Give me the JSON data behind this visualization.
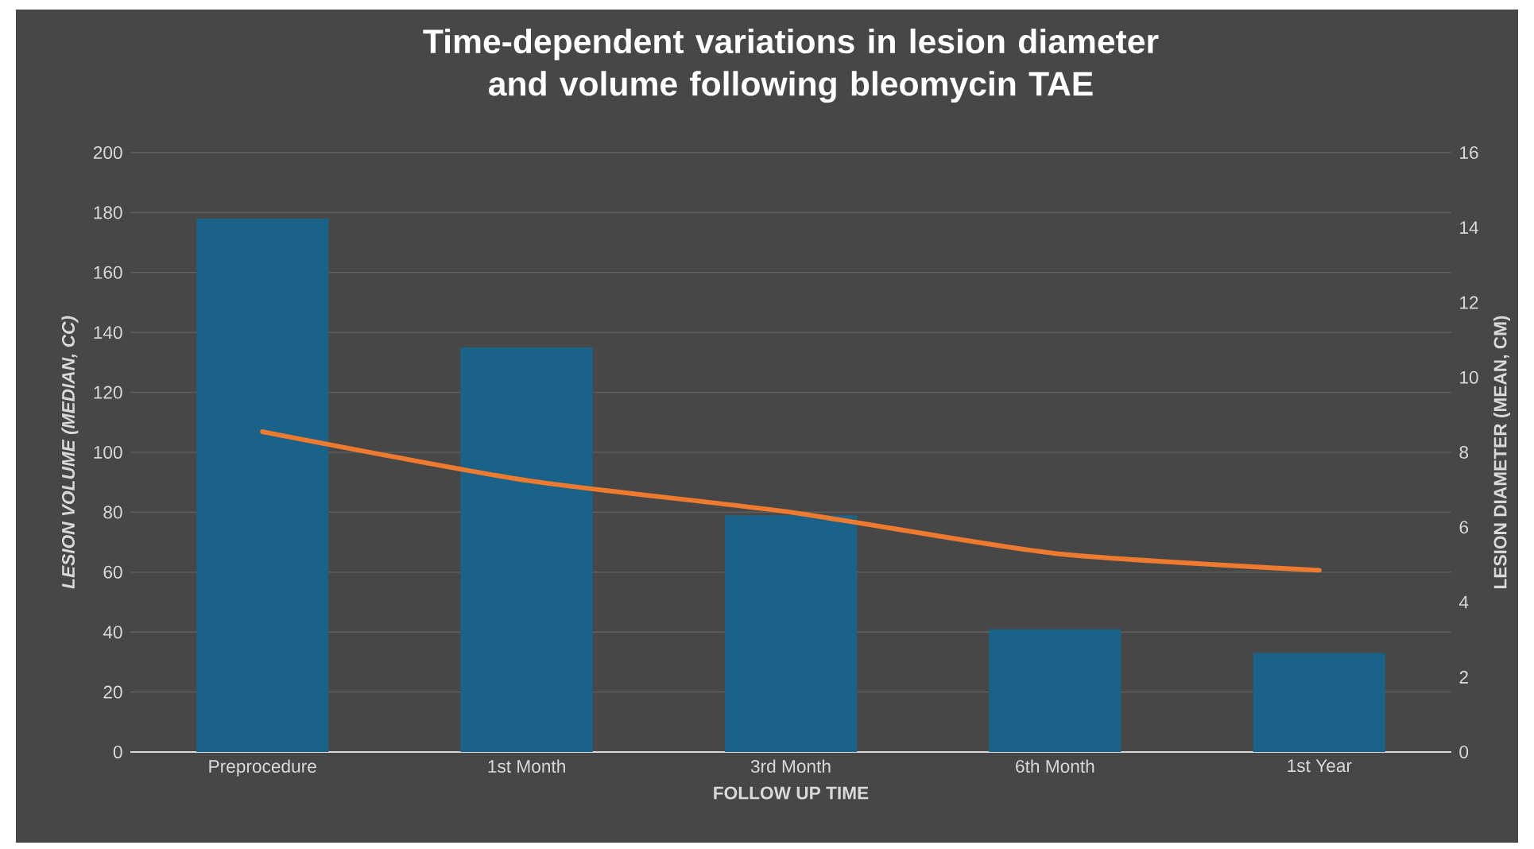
{
  "chart_data": {
    "type": "bar",
    "title": "Time-dependent variations in lesion diameter and volume following bleomycin TAE",
    "xlabel": "FOLLOW UP TIME",
    "ylabel": "LESION VOLUME (MEDIAN, CC)",
    "y2label": "LESION DIAMETER (MEAN, CM)",
    "categories": [
      "Preprocedure",
      "1st Month",
      "3rd Month",
      "6th Month",
      "1st Year"
    ],
    "series": [
      {
        "color": "#1b6288",
        "values": [
          178,
          135,
          79,
          41,
          33
        ]
      },
      {
        "type": "line",
        "axis": "y2",
        "color": "#ee7a30",
        "values": [
          8.55,
          7.25,
          6.4,
          5.3,
          4.85
        ]
      }
    ],
    "ylim": [
      0,
      200
    ],
    "yticks": [
      0,
      20,
      40,
      60,
      80,
      100,
      120,
      140,
      160,
      180,
      200
    ],
    "y2lim": [
      0,
      16
    ],
    "y2ticks": [
      0,
      2,
      4,
      6,
      8,
      10,
      12,
      14,
      16
    ],
    "grid": "y"
  }
}
